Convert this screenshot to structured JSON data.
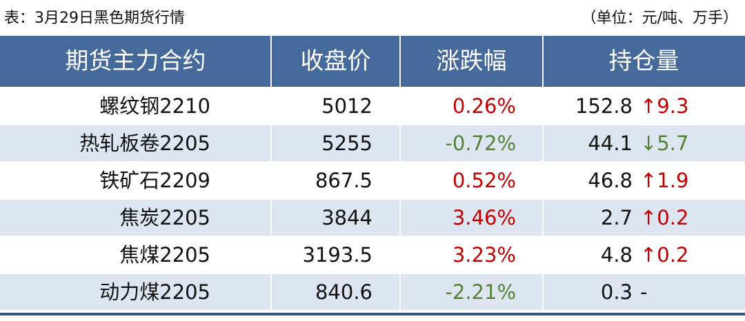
{
  "header": {
    "title": "表：3月29日黑色期货行情",
    "unit": "（单位：元/吨、万手）"
  },
  "table": {
    "columns": [
      "期货主力合约",
      "收盘价",
      "涨跌幅",
      "持仓量"
    ],
    "rows": [
      {
        "contract": "螺纹钢2210",
        "price": "5012",
        "change_pct": "0.26%",
        "pct_color": "#c00000",
        "open_interest": "152.8",
        "oi_change": "↑9.3",
        "oi_color": "#c00000"
      },
      {
        "contract": "热轧板卷2205",
        "price": "5255",
        "change_pct": "-0.72%",
        "pct_color": "#548235",
        "open_interest": "44.1",
        "oi_change": "↓5.7",
        "oi_color": "#548235"
      },
      {
        "contract": "铁矿石2209",
        "price": "867.5",
        "change_pct": "0.52%",
        "pct_color": "#c00000",
        "open_interest": "46.8",
        "oi_change": "↑1.9",
        "oi_color": "#c00000"
      },
      {
        "contract": "焦炭2205",
        "price": "3844",
        "change_pct": "3.46%",
        "pct_color": "#c00000",
        "open_interest": "2.7",
        "oi_change": "↑0.2",
        "oi_color": "#c00000"
      },
      {
        "contract": "焦煤2205",
        "price": "3193.5",
        "change_pct": "3.23%",
        "pct_color": "#c00000",
        "open_interest": "4.8",
        "oi_change": "↑0.2",
        "oi_color": "#c00000"
      },
      {
        "contract": "动力煤2205",
        "price": "840.6",
        "change_pct": "-2.21%",
        "pct_color": "#548235",
        "open_interest": "0.3",
        "oi_change": "-",
        "oi_color": "#111111"
      }
    ]
  }
}
